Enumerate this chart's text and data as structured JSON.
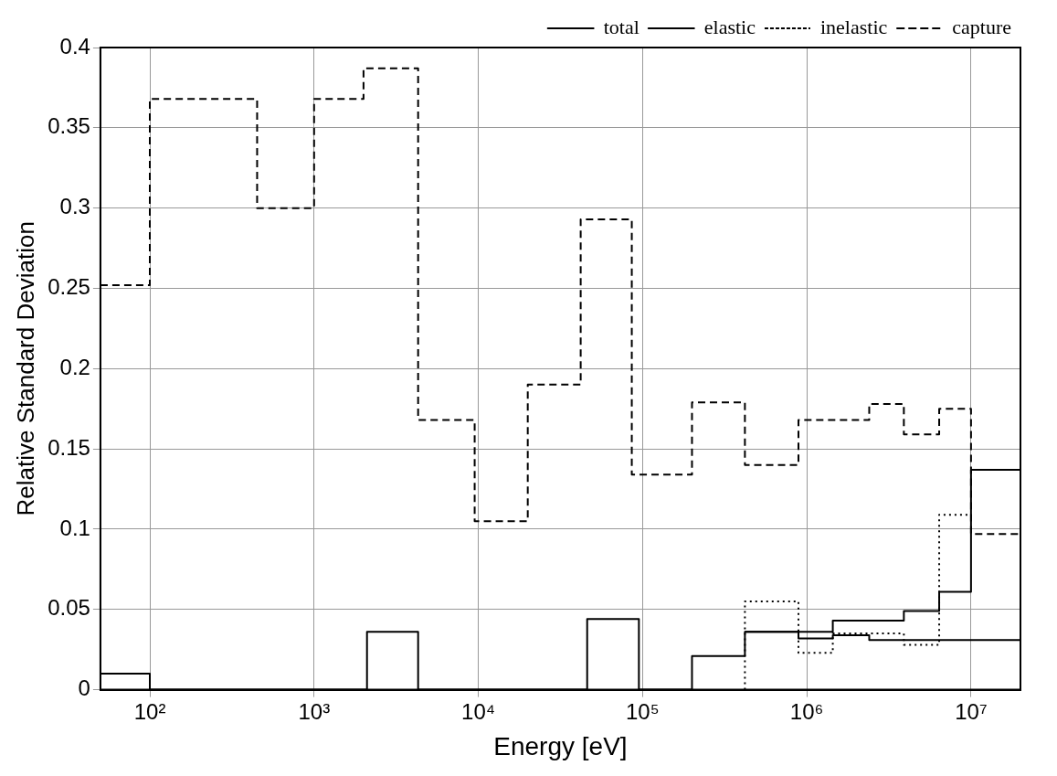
{
  "chart_data": {
    "type": "step",
    "xlabel": "Energy [eV]",
    "ylabel": "Relative Standard Deviation",
    "log": "x",
    "grid": true,
    "legend": "top right",
    "xlim": [
      50,
      20000000
    ],
    "xticks": [
      {
        "value": 100,
        "label": "10²"
      },
      {
        "value": 1000,
        "label": "10³"
      },
      {
        "value": 10000,
        "label": "10⁴"
      },
      {
        "value": 100000,
        "label": "10⁵"
      },
      {
        "value": 1000000,
        "label": "10⁶"
      },
      {
        "value": 10000000,
        "label": "10⁷"
      }
    ],
    "ylim": [
      0,
      0.4
    ],
    "yticks": [
      0,
      0.05,
      0.1,
      0.15,
      0.2,
      0.25,
      0.3,
      0.35,
      0.4
    ],
    "series": [
      {
        "name": "total",
        "color": "#000000",
        "line_style": "solid",
        "x": [
          50,
          100,
          2100,
          4300,
          46000,
          95000,
          200000,
          420000,
          890000,
          1440000,
          2400000,
          20000000
        ],
        "values": [
          0.01,
          0,
          0.036,
          0,
          0.044,
          0,
          0.021,
          0.036,
          0.032,
          0.034,
          0.031,
          0.031
        ]
      },
      {
        "name": "elastic",
        "color": "#000000",
        "line_style": "solid",
        "x": [
          420000,
          890000,
          1440000,
          3900000,
          6400000,
          10000000,
          20000000
        ],
        "values": [
          0.036,
          0.036,
          0.043,
          0.049,
          0.061,
          0.137,
          0.137
        ]
      },
      {
        "name": "inelastic",
        "color": "#000000",
        "line_style": "dotted",
        "x": [
          420000,
          420000,
          890000,
          1440000,
          3900000,
          6400000,
          10000000
        ],
        "values": [
          0,
          0.055,
          0.023,
          0.035,
          0.028,
          0.109,
          0.109
        ]
      },
      {
        "name": "capture",
        "color": "#000000",
        "line_style": "dashed",
        "x": [
          50,
          100,
          450,
          1000,
          2000,
          4300,
          9500,
          20000,
          42000,
          86000,
          200000,
          420000,
          890000,
          2400000,
          3900000,
          6400000,
          10000000,
          20000000
        ],
        "values": [
          0.252,
          0.368,
          0.3,
          0.368,
          0.387,
          0.168,
          0.105,
          0.19,
          0.293,
          0.134,
          0.179,
          0.14,
          0.168,
          0.178,
          0.159,
          0.175,
          0.097,
          0.097
        ]
      }
    ]
  }
}
